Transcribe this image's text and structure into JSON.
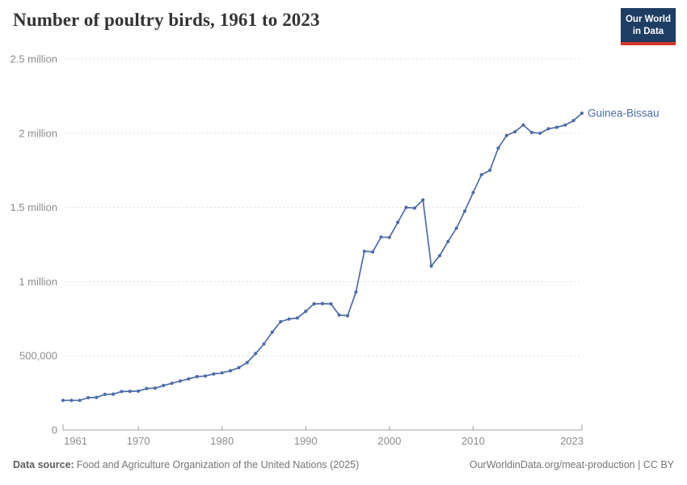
{
  "header": {
    "title": "Number of poultry birds, 1961 to 2023"
  },
  "logo": {
    "line1": "Our World",
    "line2": "in Data",
    "bg_color": "#1d3d63",
    "accent_color": "#d8352a"
  },
  "footer": {
    "source_label": "Data source:",
    "source_text": "Food and Agriculture Organization of the United Nations (2025)",
    "credit": "OurWorldinData.org/meat-production | CC BY"
  },
  "chart_data": {
    "type": "line",
    "title": "Number of poultry birds, 1961 to 2023",
    "xlabel": "",
    "ylabel": "",
    "xlim": [
      1961,
      2023
    ],
    "ylim": [
      0,
      2500000
    ],
    "grid": "horizontal-dashed",
    "legend_position": "end-of-line",
    "x_ticks": [
      1961,
      1970,
      1980,
      1990,
      2000,
      2010,
      2023
    ],
    "y_ticks": [
      0,
      500000,
      1000000,
      1500000,
      2000000,
      2500000
    ],
    "y_tick_labels": [
      "0",
      "500,000",
      "1 million",
      "1.5 million",
      "2 million",
      "2.5 million"
    ],
    "series": [
      {
        "name": "Guinea-Bissau",
        "color": "#4e6ca8",
        "x": [
          1961,
          1962,
          1963,
          1964,
          1965,
          1966,
          1967,
          1968,
          1969,
          1970,
          1971,
          1972,
          1973,
          1974,
          1975,
          1976,
          1977,
          1978,
          1979,
          1980,
          1981,
          1982,
          1983,
          1984,
          1985,
          1986,
          1987,
          1988,
          1989,
          1990,
          1991,
          1992,
          1993,
          1994,
          1995,
          1996,
          1997,
          1998,
          1999,
          2000,
          2001,
          2002,
          2003,
          2004,
          2005,
          2006,
          2007,
          2008,
          2009,
          2010,
          2011,
          2012,
          2013,
          2014,
          2015,
          2016,
          2017,
          2018,
          2019,
          2020,
          2021,
          2022,
          2023
        ],
        "values": [
          200000,
          200000,
          200000,
          218000,
          220000,
          240000,
          242000,
          260000,
          261000,
          262000,
          280000,
          282000,
          300000,
          315000,
          330000,
          345000,
          360000,
          364000,
          378000,
          385000,
          400000,
          420000,
          455000,
          515000,
          580000,
          660000,
          730000,
          748000,
          755000,
          800000,
          850000,
          852000,
          850000,
          775000,
          770000,
          930000,
          1205000,
          1200000,
          1300000,
          1298000,
          1400000,
          1500000,
          1495000,
          1550000,
          1105000,
          1175000,
          1270000,
          1360000,
          1475000,
          1600000,
          1720000,
          1750000,
          1900000,
          1985000,
          2010000,
          2055000,
          2005000,
          2000000,
          2030000,
          2040000,
          2055000,
          2085000,
          2135000
        ]
      }
    ]
  }
}
